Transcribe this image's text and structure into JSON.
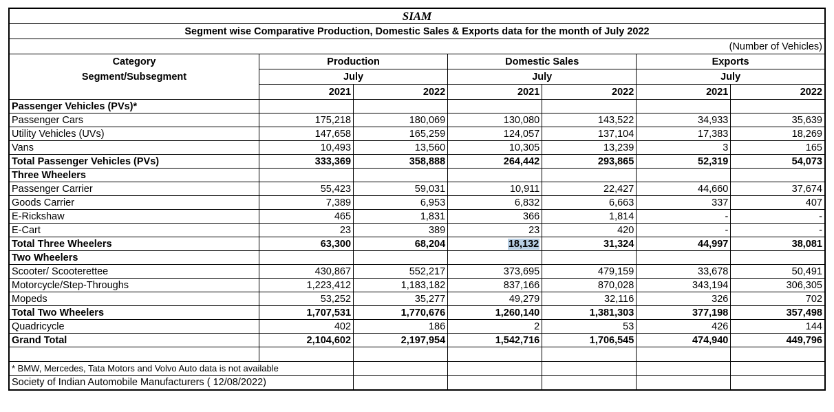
{
  "header": {
    "title": "SIAM",
    "subtitle": "Segment wise Comparative Production, Domestic Sales & Exports data for the month of July 2022",
    "units": "(Number of Vehicles)"
  },
  "columns": {
    "category_label": "Category",
    "segment_label": "Segment/Subsegment",
    "groups": [
      {
        "name": "Production",
        "month": "July",
        "years": [
          "2021",
          "2022"
        ]
      },
      {
        "name": "Domestic Sales",
        "month": "July",
        "years": [
          "2021",
          "2022"
        ]
      },
      {
        "name": "Exports",
        "month": "July",
        "years": [
          "2021",
          "2022"
        ]
      }
    ]
  },
  "rows": [
    {
      "label": "Passenger Vehicles (PVs)*",
      "type": "section",
      "values": [
        "",
        "",
        "",
        "",
        "",
        ""
      ]
    },
    {
      "label": "Passenger Cars",
      "type": "item",
      "values": [
        "175,218",
        "180,069",
        "130,080",
        "143,522",
        "34,933",
        "35,639"
      ]
    },
    {
      "label": "Utility Vehicles (UVs)",
      "type": "item",
      "values": [
        "147,658",
        "165,259",
        "124,057",
        "137,104",
        "17,383",
        "18,269"
      ]
    },
    {
      "label": "Vans",
      "type": "item",
      "values": [
        "10,493",
        "13,560",
        "10,305",
        "13,239",
        "3",
        "165"
      ]
    },
    {
      "label": "Total Passenger Vehicles (PVs)",
      "type": "total",
      "values": [
        "333,369",
        "358,888",
        "264,442",
        "293,865",
        "52,319",
        "54,073"
      ]
    },
    {
      "label": "Three Wheelers",
      "type": "section",
      "values": [
        "",
        "",
        "",
        "",
        "",
        ""
      ]
    },
    {
      "label": "Passenger Carrier",
      "type": "item",
      "values": [
        "55,423",
        "59,031",
        "10,911",
        "22,427",
        "44,660",
        "37,674"
      ]
    },
    {
      "label": "Goods Carrier",
      "type": "item",
      "values": [
        "7,389",
        "6,953",
        "6,832",
        "6,663",
        "337",
        "407"
      ]
    },
    {
      "label": "E-Rickshaw",
      "type": "item",
      "values": [
        "465",
        "1,831",
        "366",
        "1,814",
        "-",
        "-"
      ]
    },
    {
      "label": "E-Cart",
      "type": "item",
      "values": [
        "23",
        "389",
        "23",
        "420",
        "-",
        "-"
      ]
    },
    {
      "label": "Total Three Wheelers",
      "type": "total",
      "values": [
        "63,300",
        "68,204",
        "18,132",
        "31,324",
        "44,997",
        "38,081"
      ]
    },
    {
      "label": "Two Wheelers",
      "type": "section",
      "values": [
        "",
        "",
        "",
        "",
        "",
        ""
      ]
    },
    {
      "label": "Scooter/ Scooterettee",
      "type": "item",
      "values": [
        "430,867",
        "552,217",
        "373,695",
        "479,159",
        "33,678",
        "50,491"
      ]
    },
    {
      "label": "Motorcycle/Step-Throughs",
      "type": "item",
      "values": [
        "1,223,412",
        "1,183,182",
        "837,166",
        "870,028",
        "343,194",
        "306,305"
      ]
    },
    {
      "label": "Mopeds",
      "type": "item",
      "values": [
        "53,252",
        "35,277",
        "49,279",
        "32,116",
        "326",
        "702"
      ]
    },
    {
      "label": "Total Two Wheelers",
      "type": "total",
      "values": [
        "1,707,531",
        "1,770,676",
        "1,260,140",
        "1,381,303",
        "377,198",
        "357,498"
      ]
    },
    {
      "label": "Quadricycle",
      "type": "item",
      "values": [
        "402",
        "186",
        "2",
        "53",
        "426",
        "144"
      ]
    },
    {
      "label": "Grand Total",
      "type": "grand",
      "values": [
        "2,104,602",
        "2,197,954",
        "1,542,716",
        "1,706,545",
        "474,940",
        "449,796"
      ]
    }
  ],
  "selection": {
    "row": 10,
    "col": 2,
    "value": "18,132",
    "highlight_color": "#b8cfe4"
  },
  "footnotes": {
    "note": "* BMW, Mercedes, Tata Motors and Volvo Auto data is not available",
    "source": "Society of Indian Automobile Manufacturers ( 12/08/2022)"
  }
}
